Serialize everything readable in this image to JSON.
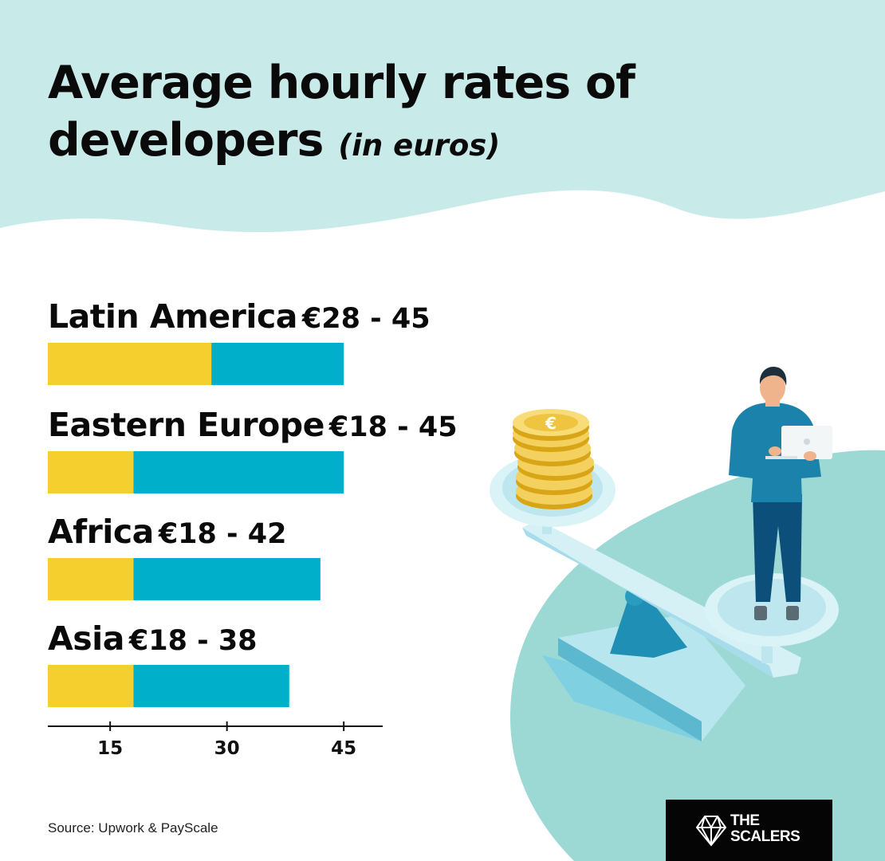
{
  "title": {
    "main": "Average hourly rates of developers",
    "unit": "(in euros)"
  },
  "colors": {
    "header_bg": "#c8ebea",
    "min_bar": "#f5cf2d",
    "range_bar": "#00afc9",
    "blob": "#9cd9d4",
    "logo_bg": "#050505"
  },
  "chart_data": {
    "type": "bar",
    "orientation": "horizontal",
    "stacked": true,
    "categories": [
      "Latin America",
      "Eastern Europe",
      "Africa",
      "Asia"
    ],
    "range_labels": [
      "€28 - 45",
      "€18 - 45",
      "€18 - 42",
      "€18 - 38"
    ],
    "min": [
      28,
      18,
      18,
      18
    ],
    "max": [
      45,
      45,
      42,
      38
    ],
    "xlim": [
      7,
      50
    ],
    "xticks": [
      15,
      30,
      45
    ],
    "grid": false,
    "legend": "none"
  },
  "source": "Source: Upwork & PayScale",
  "logo": {
    "line1": "THE",
    "line2": "SCALERS"
  }
}
